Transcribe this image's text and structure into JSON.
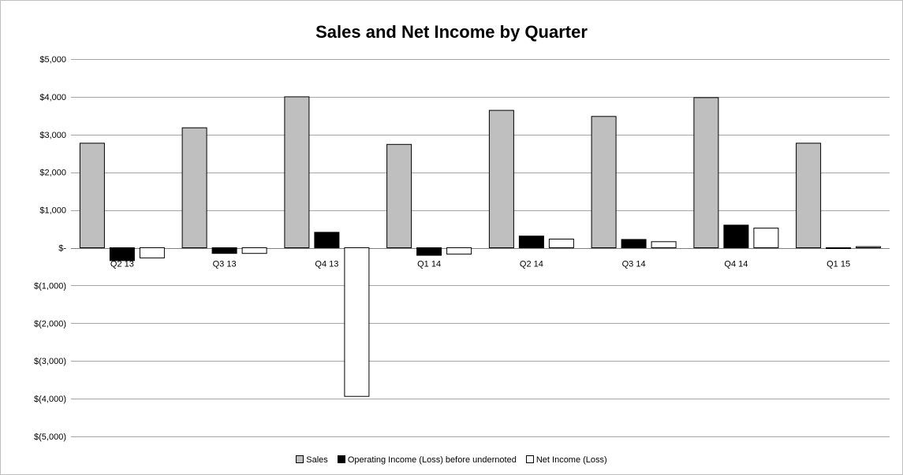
{
  "chart_data": {
    "type": "bar",
    "title": "Sales and Net Income by Quarter",
    "categories": [
      "Q2 13",
      "Q3 13",
      "Q4 13",
      "Q1 14",
      "Q2 14",
      "Q3 14",
      "Q4 14",
      "Q1 15"
    ],
    "series": [
      {
        "name": "Sales",
        "color": "#bfbfbf",
        "values": [
          2770,
          3180,
          4000,
          2740,
          3640,
          3480,
          3980,
          2770
        ]
      },
      {
        "name": "Operating Income (Loss) before undernoted",
        "color": "#000000",
        "values": [
          -340,
          -150,
          410,
          -200,
          310,
          220,
          600,
          -10
        ]
      },
      {
        "name": "Net Income (Loss)",
        "color": "#ffffff",
        "values": [
          -270,
          -150,
          -3940,
          -170,
          230,
          160,
          520,
          30
        ]
      }
    ],
    "ylim": [
      -5000,
      5000
    ],
    "yticks": [
      5000,
      4000,
      3000,
      2000,
      1000,
      0,
      -1000,
      -2000,
      -3000,
      -4000,
      -5000
    ],
    "ytick_labels": [
      "$5,000",
      "$4,000",
      "$3,000",
      "$2,000",
      "$1,000",
      "$-",
      "$(1,000)",
      "$(2,000)",
      "$(3,000)",
      "$(4,000)",
      "$(5,000)"
    ],
    "grid": true,
    "legend_position": "bottom"
  }
}
